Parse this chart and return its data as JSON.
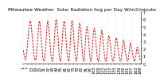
{
  "title": "Milwaukee Weather  Solar Radiation Avg per Day W/m2/minute",
  "line_color": "#dd0000",
  "bg_color": "#ffffff",
  "plot_bg": "#ffffff",
  "grid_color": "#bbbbbb",
  "y_values": [
    1.8,
    1.2,
    0.8,
    0.5,
    0.8,
    1.5,
    2.5,
    3.8,
    4.8,
    5.5,
    5.8,
    5.5,
    4.5,
    3.5,
    2.5,
    1.5,
    0.8,
    0.4,
    0.5,
    1.2,
    2.5,
    3.8,
    5.0,
    5.8,
    5.5,
    4.5,
    3.2,
    2.0,
    0.8,
    0.4,
    0.3,
    0.8,
    2.0,
    3.5,
    5.0,
    5.8,
    5.5,
    4.8,
    3.5,
    2.0,
    1.0,
    0.4,
    0.3,
    0.8,
    2.2,
    3.8,
    5.2,
    6.0,
    5.8,
    4.8,
    3.5,
    2.0,
    0.8,
    0.3,
    0.4,
    1.5,
    3.0,
    4.5,
    5.5,
    5.8,
    5.2,
    4.0,
    2.8,
    1.5,
    0.6,
    0.3,
    0.5,
    1.8,
    3.5,
    5.0,
    5.8,
    5.5,
    4.5,
    3.0,
    1.8,
    0.8,
    0.3,
    0.5,
    1.5,
    3.2,
    4.8,
    5.5,
    5.2,
    4.2,
    2.8,
    1.5,
    0.6,
    0.3,
    0.8,
    2.2,
    3.8,
    4.8,
    5.0,
    4.2,
    3.0,
    1.8,
    0.8,
    0.3,
    0.5,
    1.5,
    3.0,
    4.2,
    4.8,
    4.5,
    3.5,
    2.2,
    1.2,
    0.5,
    0.3,
    0.8,
    1.8,
    3.0,
    4.0,
    4.5,
    3.8,
    2.8,
    1.8,
    1.0,
    0.4,
    0.3,
    0.8,
    1.8,
    3.0,
    3.8,
    3.5,
    2.8,
    2.0,
    1.2,
    0.6,
    0.3,
    0.5,
    1.2,
    2.2,
    3.2,
    3.5,
    3.0,
    2.2,
    1.5,
    0.8,
    0.4,
    0.3,
    0.6,
    1.5,
    2.5,
    3.2,
    3.0,
    2.2,
    1.5,
    1.0,
    0.5,
    0.3,
    0.5,
    1.2,
    2.0,
    2.8,
    2.5,
    2.0,
    1.5,
    1.0,
    0.5,
    0.3,
    0.5,
    1.0,
    1.8,
    2.2,
    2.0,
    1.5,
    1.0,
    0.6,
    0.3
  ],
  "ylim": [
    0,
    7
  ],
  "yticks": [
    0,
    1,
    2,
    3,
    4,
    5,
    6,
    7
  ],
  "ytick_labels": [
    "0",
    "1",
    "2",
    "3",
    "4",
    "5",
    "6",
    "7"
  ],
  "grid_interval": 12,
  "tick_fontsize": 3.5,
  "title_fontsize": 4.2,
  "line_width": 0.7,
  "dash_on": 2.5,
  "dash_off": 1.5
}
